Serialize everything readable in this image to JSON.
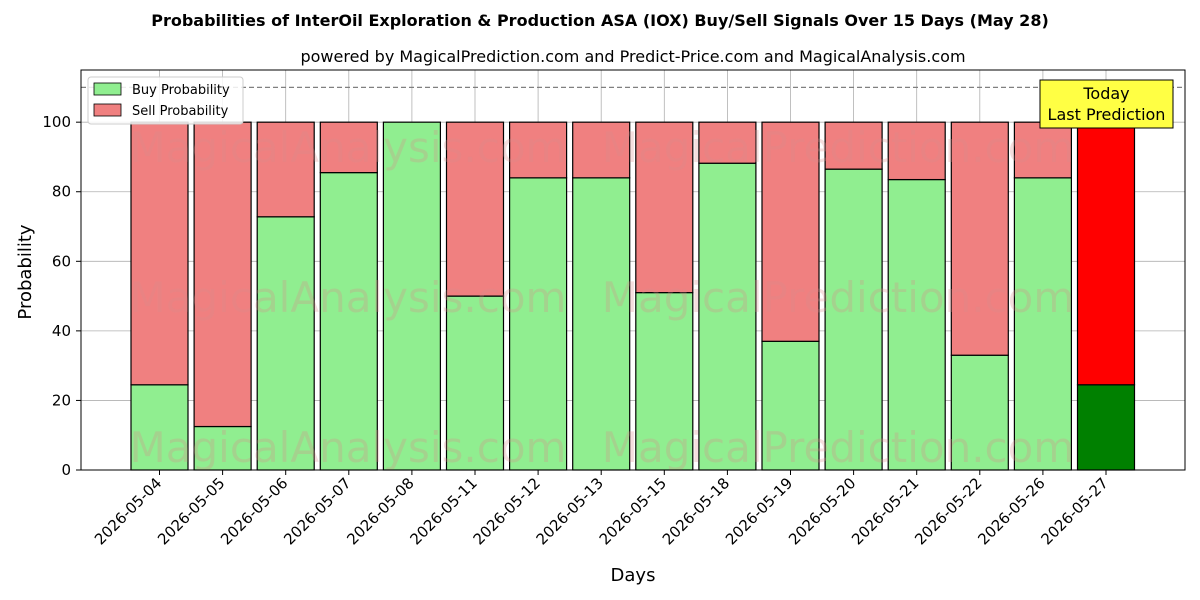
{
  "chart_data": {
    "type": "bar",
    "stacked": true,
    "title": "Probabilities of InterOil Exploration & Production ASA (IOX) Buy/Sell Signals Over 15 Days (May 28)",
    "subtitle": "powered by MagicalPrediction.com and Predict-Price.com and MagicalAnalysis.com",
    "xlabel": "Days",
    "ylabel": "Probability",
    "ylim": [
      0,
      115
    ],
    "yticks": [
      "0",
      "20",
      "40",
      "60",
      "80",
      "100"
    ],
    "grid": true,
    "legend_position": "top-left",
    "categories": [
      "2026-05-04",
      "2026-05-05",
      "2026-05-06",
      "2026-05-07",
      "2026-05-08",
      "2026-05-11",
      "2026-05-12",
      "2026-05-13",
      "2026-05-15",
      "2026-05-18",
      "2026-05-19",
      "2026-05-20",
      "2026-05-21",
      "2026-05-22",
      "2026-05-26",
      "2026-05-27"
    ],
    "series": [
      {
        "name": "Buy Probability",
        "color": "#90ee90",
        "values": [
          24.5,
          12.5,
          72.8,
          85.5,
          100,
          50,
          84,
          84,
          51,
          88.2,
          37,
          86.5,
          83.5,
          33,
          84,
          24.5
        ]
      },
      {
        "name": "Sell Probability",
        "color": "#f08080",
        "values": [
          75.5,
          87.5,
          27.2,
          14.5,
          0,
          50,
          16,
          16,
          49,
          11.8,
          63,
          13.5,
          16.5,
          67,
          16,
          75.5
        ]
      }
    ],
    "highlight": {
      "index": 15,
      "buy_color": "#008000",
      "sell_color": "#ff0000"
    },
    "reference_line": {
      "y": 110,
      "style": "dashed",
      "color": "#808080"
    },
    "annotation": {
      "line1": "Today",
      "line2": "Last Prediction",
      "background": "#ffff44"
    },
    "watermarks": [
      "MagicalAnalysis.com",
      "MagicalPrediction.com"
    ]
  }
}
